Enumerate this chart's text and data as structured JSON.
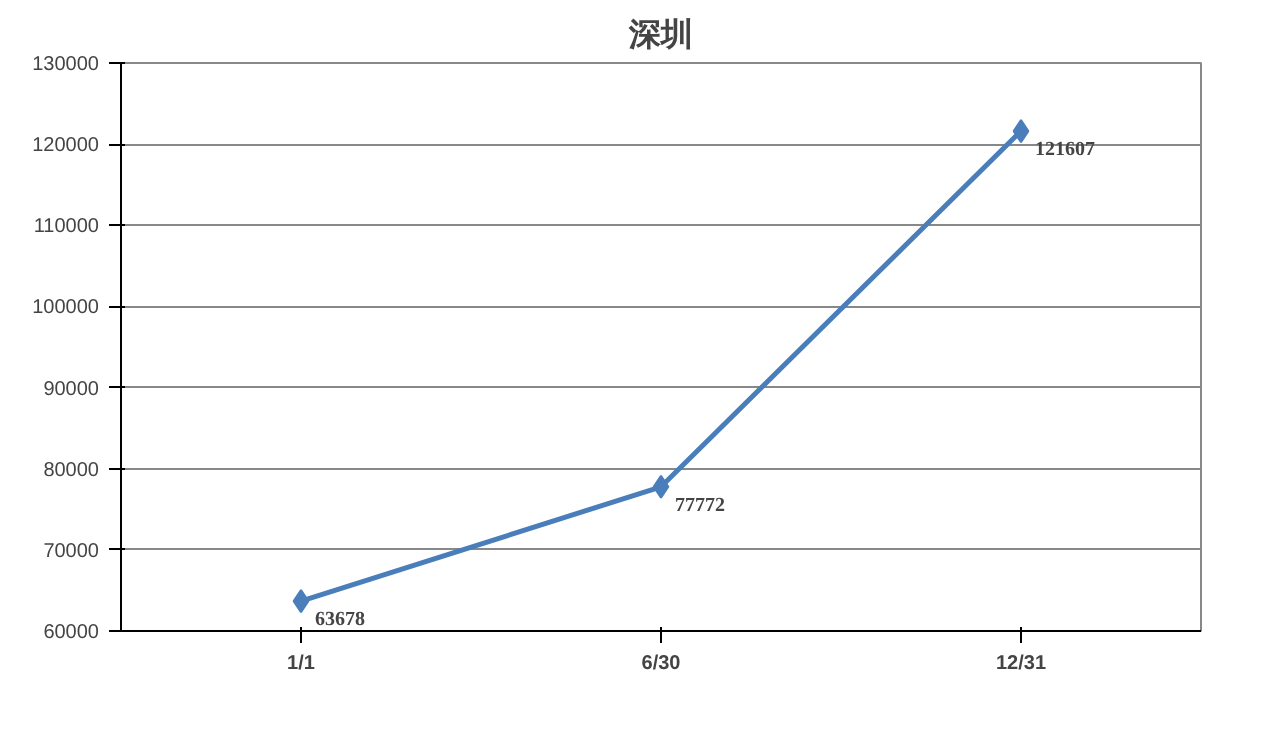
{
  "chart_data": {
    "type": "line",
    "title": "深圳",
    "categories": [
      "1/1",
      "6/30",
      "12/31"
    ],
    "series": [
      {
        "color": "#4a7ebb",
        "values": [
          63678,
          77772,
          121607
        ]
      }
    ],
    "ylim": [
      60000,
      130000
    ],
    "yticks": [
      60000,
      70000,
      80000,
      90000,
      100000,
      110000,
      120000,
      130000
    ],
    "grid": "y",
    "marker": "diamond",
    "line_style": "solid",
    "data_labels": true
  }
}
